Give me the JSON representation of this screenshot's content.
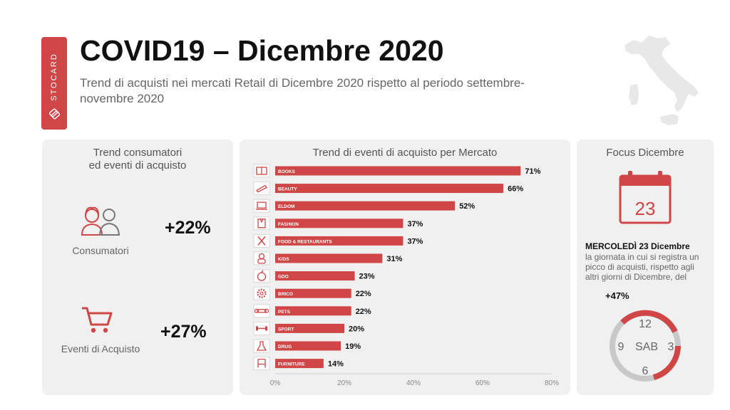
{
  "brand": {
    "name": "STOCARD"
  },
  "header": {
    "title": "COVID19 – Dicembre 2020",
    "subtitle": "Trend di acquisti nei mercati Retail di Dicembre 2020 rispetto al  periodo settembre-novembre 2020"
  },
  "left_panel": {
    "title": "Trend consumatori\ned  eventi di acquisto",
    "consumers": {
      "label": "Consumatori",
      "value": "+22%",
      "icon": "people-icon"
    },
    "events": {
      "label": "Eventi di Acquisto",
      "value": "+27%",
      "icon": "cart-icon"
    }
  },
  "focus_panel": {
    "title": "Focus Dicembre",
    "calendar_day": "23",
    "highlight": "MERCOLEDÌ 23 Dicembre",
    "description": "la giornata in cui si registra un picco di acquisti, rispetto agli altri giorni di Dicembre, del",
    "value": "+47%",
    "clock": {
      "top": "12",
      "left": "9",
      "center": "SAB",
      "right": "3",
      "bottom": "6"
    }
  },
  "colors": {
    "accent": "#d04646",
    "panel": "#f0f0f0",
    "text_dark": "#111111"
  },
  "chart_data": {
    "type": "bar",
    "orientation": "horizontal",
    "title": "Trend di eventi di acquisto per Mercato",
    "categories": [
      "BOOKS",
      "BEAUTY",
      "ELDOM",
      "FASHION",
      "FOOD & RESTAURANTS",
      "KIDS",
      "GDO",
      "BRICO",
      "PETS",
      "SPORT",
      "DRUG",
      "FURNITURE"
    ],
    "icons": [
      "book-icon",
      "lipstick-icon",
      "laptop-icon",
      "shirt-icon",
      "cutlery-icon",
      "baby-icon",
      "apple-icon",
      "gear-icon",
      "bone-icon",
      "dumbbell-icon",
      "flask-icon",
      "chair-icon"
    ],
    "values": [
      71,
      66,
      52,
      37,
      37,
      31,
      23,
      22,
      22,
      20,
      19,
      14
    ],
    "value_labels": [
      "71%",
      "66%",
      "52%",
      "37%",
      "37%",
      "31%",
      "23%",
      "22%",
      "22%",
      "20%",
      "19%",
      "14%"
    ],
    "xlim": [
      0,
      80
    ],
    "xticks": [
      "0%",
      "20%",
      "40%",
      "60%",
      "80%"
    ],
    "grid": false,
    "legend": "none"
  }
}
